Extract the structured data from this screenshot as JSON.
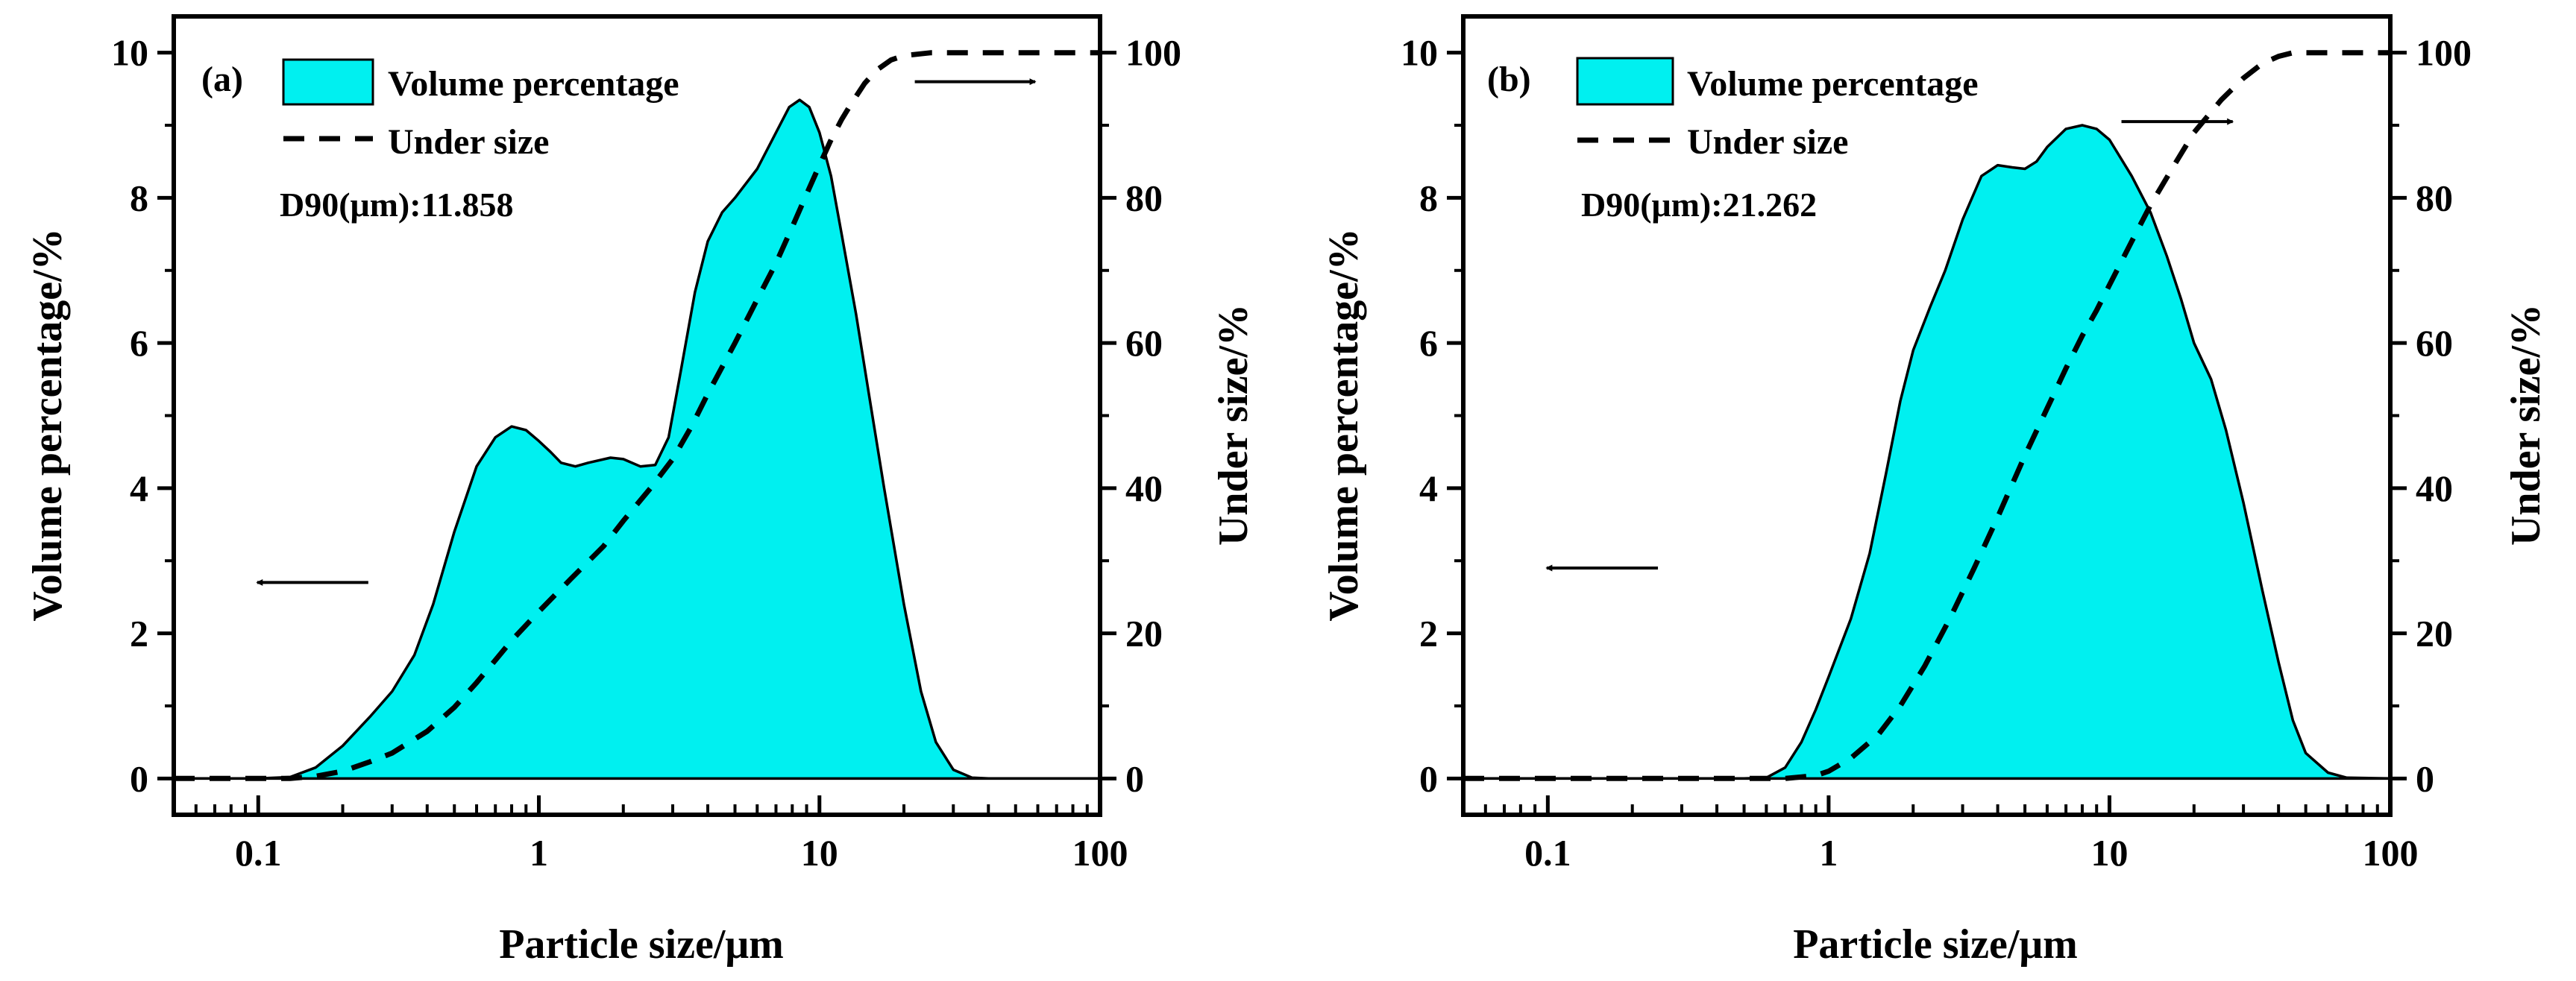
{
  "chart_data": [
    {
      "type": "area",
      "panel_label": "(a)",
      "xlabel": "Particle size/μm",
      "ylabel": "Volume percentage/%",
      "y2label": "Under size/%",
      "xscale": "log",
      "xlim": [
        0.05,
        100
      ],
      "ylim": [
        -0.5,
        10.5
      ],
      "y2lim": [
        -5,
        105
      ],
      "x_ticks": [
        0.1,
        1,
        10,
        100
      ],
      "x_tick_labels": [
        "0.1",
        "1",
        "10",
        "100"
      ],
      "y_ticks": [
        0,
        2,
        4,
        6,
        8,
        10
      ],
      "y_tick_labels": [
        "0",
        "2",
        "4",
        "6",
        "8",
        "10"
      ],
      "y2_ticks": [
        0,
        20,
        40,
        60,
        80,
        100
      ],
      "y2_tick_labels": [
        "0",
        "20",
        "40",
        "60",
        "80",
        "100"
      ],
      "legend": {
        "position": "top-left",
        "entries": [
          {
            "label": "Volume percentage",
            "style": "fill",
            "color": "#00f0f0"
          },
          {
            "label": "Under size",
            "style": "dashed",
            "color": "#000000"
          }
        ]
      },
      "annotation": "D90(μm):11.858",
      "series": [
        {
          "name": "Volume percentage",
          "axis": "left",
          "x": [
            0.05,
            0.1,
            0.13,
            0.16,
            0.2,
            0.25,
            0.3,
            0.36,
            0.42,
            0.5,
            0.6,
            0.7,
            0.8,
            0.9,
            1.0,
            1.1,
            1.2,
            1.35,
            1.5,
            1.8,
            2.0,
            2.3,
            2.6,
            2.9,
            3.2,
            3.6,
            4.0,
            4.5,
            5.0,
            6.0,
            7.0,
            7.8,
            8.5,
            9.2,
            10.0,
            11.0,
            12.0,
            13.5,
            15.0,
            17.0,
            20.0,
            23.0,
            26.0,
            30.0,
            35.0,
            40.0,
            100.0
          ],
          "values": [
            0,
            0,
            0.02,
            0.15,
            0.45,
            0.85,
            1.2,
            1.7,
            2.4,
            3.4,
            4.3,
            4.7,
            4.85,
            4.8,
            4.65,
            4.5,
            4.35,
            4.3,
            4.35,
            4.42,
            4.4,
            4.3,
            4.32,
            4.7,
            5.6,
            6.7,
            7.4,
            7.8,
            8.0,
            8.4,
            8.9,
            9.25,
            9.35,
            9.25,
            8.9,
            8.3,
            7.5,
            6.4,
            5.3,
            4.0,
            2.4,
            1.2,
            0.5,
            0.12,
            0.01,
            0,
            0
          ]
        },
        {
          "name": "Under size",
          "axis": "right",
          "x": [
            0.05,
            0.1,
            0.13,
            0.16,
            0.2,
            0.25,
            0.3,
            0.4,
            0.5,
            0.6,
            0.7,
            0.8,
            1.0,
            1.3,
            1.7,
            2.0,
            2.5,
            3.0,
            3.5,
            4.0,
            5.0,
            6.0,
            7.0,
            8.0,
            9.0,
            10.0,
            11.0,
            12.0,
            13.0,
            14.5,
            16.0,
            18.0,
            20.0,
            25.0,
            30.0,
            40.0,
            100.0
          ],
          "values": [
            0,
            0,
            0,
            0.3,
            1.0,
            2.3,
            3.5,
            6.5,
            9.8,
            13.2,
            16.3,
            19.0,
            23.0,
            27.5,
            32.0,
            35.5,
            40.0,
            44.0,
            48.5,
            53.0,
            60.0,
            66.0,
            71.0,
            76.0,
            80.5,
            84.5,
            88.0,
            90.8,
            93.0,
            95.8,
            97.6,
            99.0,
            99.6,
            100,
            100,
            100,
            100
          ]
        }
      ],
      "arrows": [
        {
          "points_to": "left axis",
          "at_y": 2.7
        },
        {
          "points_to": "right axis",
          "at_y": 96
        }
      ]
    },
    {
      "type": "area",
      "panel_label": "(b)",
      "xlabel": "Particle size/μm",
      "ylabel": "Volume percentage/%",
      "y2label": "Under size/%",
      "xscale": "log",
      "xlim": [
        0.05,
        100
      ],
      "ylim": [
        -0.5,
        10.5
      ],
      "y2lim": [
        -5,
        105
      ],
      "x_ticks": [
        0.1,
        1,
        10,
        100
      ],
      "x_tick_labels": [
        "0.1",
        "1",
        "10",
        "100"
      ],
      "y_ticks": [
        0,
        2,
        4,
        6,
        8,
        10
      ],
      "y_tick_labels": [
        "0",
        "2",
        "4",
        "6",
        "8",
        "10"
      ],
      "y2_ticks": [
        0,
        20,
        40,
        60,
        80,
        100
      ],
      "y2_tick_labels": [
        "0",
        "20",
        "40",
        "60",
        "80",
        "100"
      ],
      "legend": {
        "position": "top-left",
        "entries": [
          {
            "label": "Volume percentage",
            "style": "fill",
            "color": "#00f0f0"
          },
          {
            "label": "Under size",
            "style": "dashed",
            "color": "#000000"
          }
        ]
      },
      "annotation": "D90(μm):21.262",
      "series": [
        {
          "name": "Volume percentage",
          "axis": "left",
          "x": [
            0.05,
            0.5,
            0.6,
            0.7,
            0.8,
            0.9,
            1.0,
            1.2,
            1.4,
            1.6,
            1.8,
            2.0,
            2.3,
            2.6,
            3.0,
            3.5,
            4.0,
            4.5,
            5.0,
            5.5,
            6.0,
            7.0,
            8.0,
            9.0,
            10.0,
            12.0,
            14.0,
            16.0,
            18.0,
            20.0,
            23.0,
            26.0,
            30.0,
            35.0,
            40.0,
            45.0,
            50.0,
            60.0,
            70.0,
            100.0
          ],
          "values": [
            0,
            0,
            0.01,
            0.15,
            0.5,
            0.95,
            1.4,
            2.2,
            3.1,
            4.2,
            5.2,
            5.9,
            6.5,
            7.0,
            7.7,
            8.3,
            8.45,
            8.42,
            8.4,
            8.5,
            8.7,
            8.95,
            9.0,
            8.95,
            8.8,
            8.3,
            7.8,
            7.2,
            6.6,
            6.0,
            5.5,
            4.8,
            3.8,
            2.6,
            1.6,
            0.8,
            0.35,
            0.08,
            0.01,
            0
          ]
        },
        {
          "name": "Under size",
          "axis": "right",
          "x": [
            0.05,
            0.7,
            0.9,
            1.0,
            1.2,
            1.5,
            1.8,
            2.2,
            2.7,
            3.3,
            4.0,
            5.0,
            6.0,
            7.0,
            8.0,
            9.0,
            10.0,
            12.0,
            14.0,
            17.0,
            20.0,
            25.0,
            30.0,
            35.0,
            40.0,
            45.0,
            50.0,
            60.0,
            100.0
          ],
          "values": [
            0,
            0,
            0.4,
            1.0,
            2.8,
            6.0,
            10.0,
            15.5,
            22.0,
            29.0,
            36.0,
            44.5,
            51.0,
            56.5,
            61.0,
            64.5,
            68.0,
            74.0,
            79.0,
            84.5,
            89.0,
            93.5,
            96.5,
            98.5,
            99.5,
            100,
            100,
            100,
            100
          ]
        }
      ],
      "arrows": [
        {
          "points_to": "left axis",
          "at_y": 2.9
        },
        {
          "points_to": "right axis",
          "at_y": 90.5
        }
      ]
    }
  ]
}
